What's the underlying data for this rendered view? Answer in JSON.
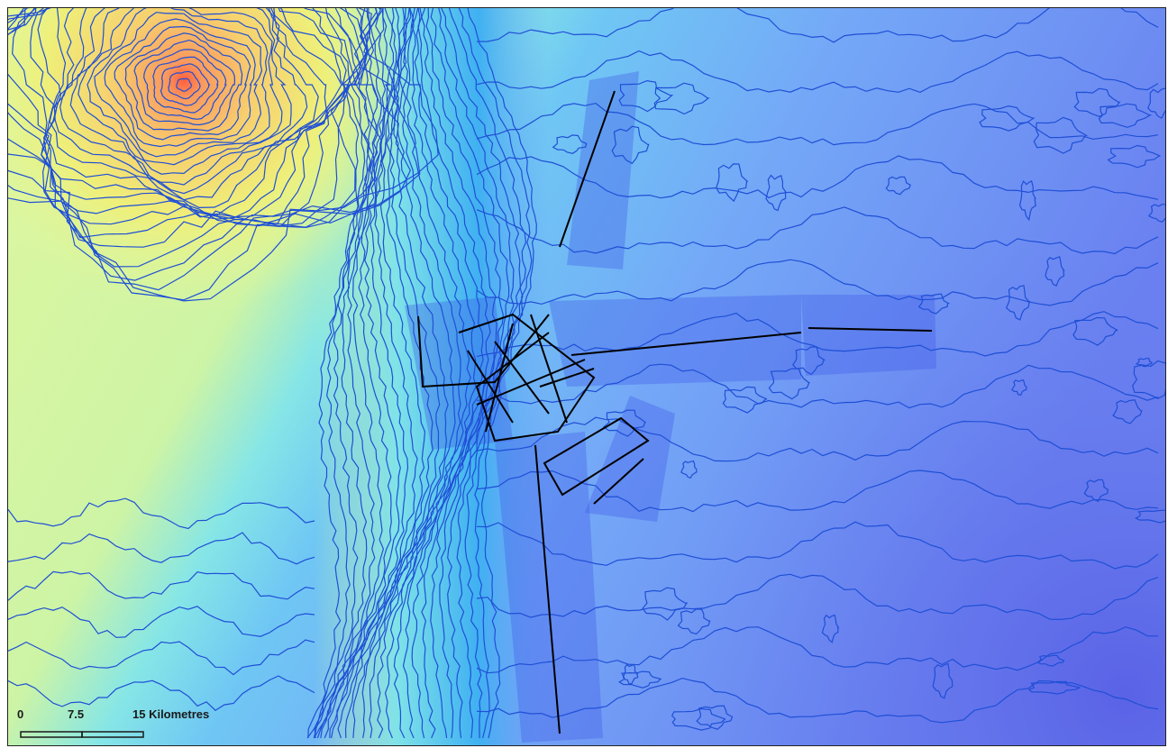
{
  "map": {
    "colors": {
      "contour": "#1f4fd6",
      "track": "#000000",
      "bathy_low": "#ff6b50",
      "bathy_mid": "#e4f27a",
      "bathy_shelf": "#d8f59a",
      "bathy_deep": "#5a74e6",
      "survey_swath": "#3f5ae8"
    }
  },
  "scale_bar": {
    "labels": [
      "0",
      "7.5",
      "15 Kilometres"
    ]
  }
}
